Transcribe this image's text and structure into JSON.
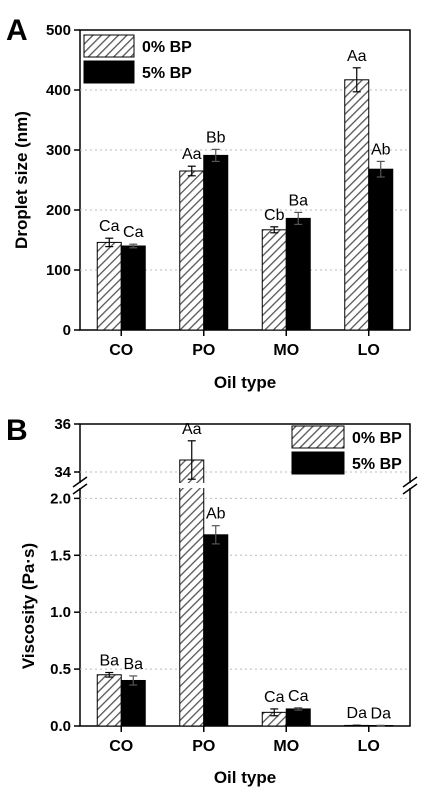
{
  "colors": {
    "series1_hatch": "#555555",
    "series1_fill": "#ffffff",
    "series2_fill": "#000000",
    "grid": "#bbbbbb"
  },
  "chart_data": [
    {
      "panel": "A",
      "type": "bar",
      "categories": [
        "CO",
        "PO",
        "MO",
        "LO"
      ],
      "xlabel": "Oil type",
      "ylabel": "Droplet size (nm)",
      "ylim": [
        0,
        500
      ],
      "yticks": [
        "0",
        "100",
        "200",
        "300",
        "400",
        "500"
      ],
      "grid": true,
      "legend_position": "top-left",
      "series": [
        {
          "name": "0% BP",
          "pattern": "hatched",
          "values": [
            146,
            265,
            167,
            417
          ],
          "errors": [
            7,
            8,
            5,
            20
          ],
          "labels": [
            "Ca",
            "Aa",
            "Cb",
            "Aa"
          ]
        },
        {
          "name": "5% BP",
          "pattern": "solid",
          "values": [
            140,
            291,
            186,
            268
          ],
          "errors": [
            3,
            10,
            10,
            13
          ],
          "labels": [
            "Ca",
            "Bb",
            "Ba",
            "Ab"
          ]
        }
      ]
    },
    {
      "panel": "B",
      "type": "bar",
      "categories": [
        "CO",
        "PO",
        "MO",
        "LO"
      ],
      "xlabel": "Oil type",
      "ylabel": "Viscosity (Pa·s)",
      "broken_axis": true,
      "ylim_lower": [
        0,
        2.1
      ],
      "ylim_upper": [
        33.5,
        36
      ],
      "yticks_lower": [
        "0.0",
        "0.5",
        "1.0",
        "1.5",
        "2.0"
      ],
      "yticks_upper": [
        "34",
        "36"
      ],
      "grid": true,
      "legend_position": "top-right",
      "series": [
        {
          "name": "0% BP",
          "pattern": "hatched",
          "values": [
            0.45,
            34.5,
            0.12,
            0.005
          ],
          "errors": [
            0.02,
            0.8,
            0.03,
            0.002
          ],
          "labels": [
            "Ba",
            "Aa",
            "Ca",
            "Da"
          ]
        },
        {
          "name": "5% BP",
          "pattern": "solid",
          "values": [
            0.4,
            1.68,
            0.15,
            0.004
          ],
          "errors": [
            0.04,
            0.08,
            0.01,
            0.002
          ],
          "labels": [
            "Ba",
            "Ab",
            "Ca",
            "Da"
          ]
        }
      ]
    }
  ]
}
